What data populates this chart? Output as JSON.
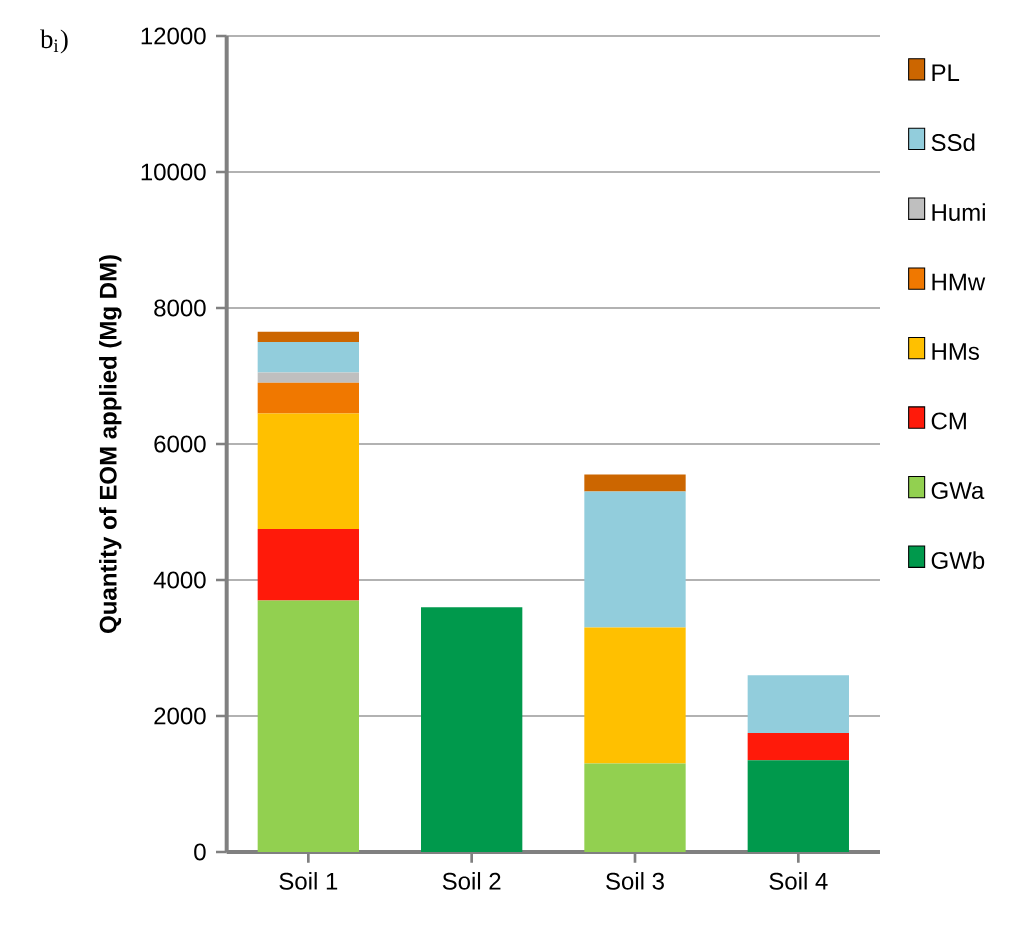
{
  "chart_data": {
    "type": "bar",
    "stacked": true,
    "title": "b$_{i}$)",
    "ylabel": "Quantity of EOM applied (Mg DM)",
    "categories": [
      "Soil 1",
      "Soil 2",
      "Soil 3",
      "Soil 4"
    ],
    "series": [
      {
        "name": "GWb",
        "color": "#00994c",
        "values": [
          null,
          3600,
          null,
          1350
        ]
      },
      {
        "name": "GWa",
        "color": "#92d050",
        "values": [
          3700,
          null,
          1300,
          null
        ]
      },
      {
        "name": "CM",
        "color": "#ff1a0a",
        "values": [
          1050,
          null,
          null,
          400
        ]
      },
      {
        "name": "HMs",
        "color": "#ffc000",
        "values": [
          1700,
          null,
          2000,
          null
        ]
      },
      {
        "name": "HMw",
        "color": "#f07800",
        "values": [
          450,
          null,
          null,
          null
        ]
      },
      {
        "name": "Humi",
        "color": "#bfbfbf",
        "values": [
          150,
          null,
          null,
          null
        ]
      },
      {
        "name": "SSd",
        "color": "#92cddc",
        "values": [
          450,
          null,
          2000,
          850
        ]
      },
      {
        "name": "PL",
        "color": "#cc6600",
        "values": [
          150,
          null,
          250,
          null
        ]
      }
    ],
    "ylim": [
      0,
      12000
    ],
    "yticks": [
      0,
      2000,
      4000,
      6000,
      8000,
      10000,
      12000
    ],
    "grid": "y",
    "legend": "right"
  }
}
